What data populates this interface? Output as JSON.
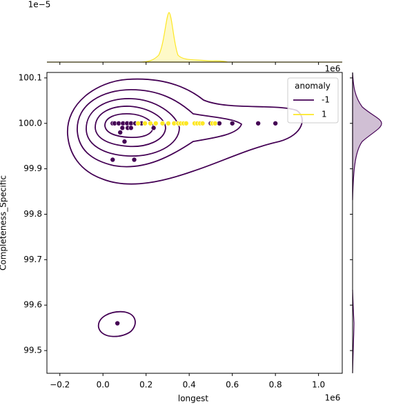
{
  "chart_data": {
    "type": "scatter",
    "xlabel": "longest",
    "ylabel": "Completeness_Specific",
    "x_offset_label": "1e6",
    "top_offset_label": "1e−5",
    "top_right_offset_label": "1e6",
    "legend_title": "anomaly",
    "legend": "upper right",
    "xlim": [
      -0.26,
      1.11
    ],
    "ylim": [
      99.45,
      100.112
    ],
    "xticks": [
      {
        "value": -0.2,
        "label": "−0.2"
      },
      {
        "value": 0.0,
        "label": "0.0"
      },
      0.2,
      0.4,
      0.6,
      0.8,
      {
        "value": 1.0,
        "label": "1.0"
      }
    ],
    "yticks": [
      99.5,
      99.6,
      99.7,
      99.8,
      99.9,
      {
        "value": 100.0,
        "label": "100.0"
      },
      100.1
    ],
    "series": [
      {
        "name": "-1",
        "color": "#440154",
        "x": [
          0.045,
          0.054,
          0.073,
          0.093,
          0.112,
          0.13,
          0.15,
          0.179,
          0.33,
          0.5,
          0.54,
          0.6,
          0.72,
          0.8,
          0.09,
          0.115,
          0.13,
          0.235,
          0.08,
          0.1,
          0.045,
          0.145,
          0.067
        ],
        "y": [
          100.0,
          100.0,
          100.0,
          100.0,
          100.0,
          100.0,
          100.0,
          100.0,
          100.0,
          100.0,
          100.0,
          100.0,
          100.0,
          100.0,
          99.99,
          99.99,
          99.99,
          99.99,
          99.98,
          99.96,
          99.92,
          99.92,
          99.56
        ]
      },
      {
        "name": "1",
        "color": "#fde725",
        "x": [
          0.163,
          0.195,
          0.22,
          0.245,
          0.276,
          0.303,
          0.33,
          0.349,
          0.361,
          0.374,
          0.386,
          0.425,
          0.437,
          0.45,
          0.462,
          0.507,
          0.52
        ],
        "y": [
          100.0,
          100.0,
          100.0,
          100.0,
          100.0,
          100.0,
          100.0,
          100.0,
          100.0,
          100.0,
          100.0,
          100.0,
          100.0,
          100.0,
          100.0,
          100.0,
          100.0
        ]
      }
    ]
  }
}
